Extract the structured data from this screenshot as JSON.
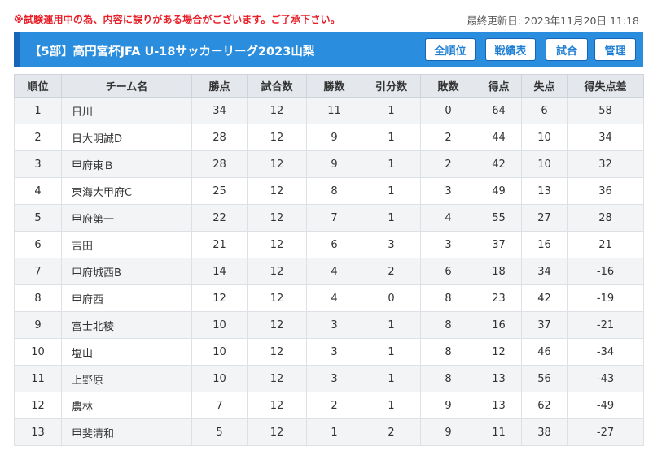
{
  "notice": "※試験運用中の為、内容に誤りがある場合がございます。ご了承下さい。",
  "last_updated": "最終更新日: 2023年11月20日 11:18",
  "header": {
    "title": "【5部】高円宮杯JFA U-18サッカーリーグ2023山梨",
    "buttons": {
      "standings": "全順位",
      "results": "戦績表",
      "matches": "試合",
      "admin": "管理"
    }
  },
  "colors": {
    "notice": "#e8202a",
    "header_bg": "#2a8dde",
    "header_accent": "#1565b8",
    "button_text": "#1f7fd4",
    "table_header_bg": "#e4e7ec",
    "row_stripe": "#f3f4f6"
  },
  "table": {
    "columns": [
      "順位",
      "チーム名",
      "勝点",
      "試合数",
      "勝数",
      "引分数",
      "敗数",
      "得点",
      "失点",
      "得失点差"
    ],
    "rows": [
      [
        "1",
        "日川",
        "34",
        "12",
        "11",
        "1",
        "0",
        "64",
        "6",
        "58"
      ],
      [
        "2",
        "日大明誠D",
        "28",
        "12",
        "9",
        "1",
        "2",
        "44",
        "10",
        "34"
      ],
      [
        "3",
        "甲府東Ｂ",
        "28",
        "12",
        "9",
        "1",
        "2",
        "42",
        "10",
        "32"
      ],
      [
        "4",
        "東海大甲府C",
        "25",
        "12",
        "8",
        "1",
        "3",
        "49",
        "13",
        "36"
      ],
      [
        "5",
        "甲府第一",
        "22",
        "12",
        "7",
        "1",
        "4",
        "55",
        "27",
        "28"
      ],
      [
        "6",
        "吉田",
        "21",
        "12",
        "6",
        "3",
        "3",
        "37",
        "16",
        "21"
      ],
      [
        "7",
        "甲府城西B",
        "14",
        "12",
        "4",
        "2",
        "6",
        "18",
        "34",
        "-16"
      ],
      [
        "8",
        "甲府西",
        "12",
        "12",
        "4",
        "0",
        "8",
        "23",
        "42",
        "-19"
      ],
      [
        "9",
        "富士北稜",
        "10",
        "12",
        "3",
        "1",
        "8",
        "16",
        "37",
        "-21"
      ],
      [
        "10",
        "塩山",
        "10",
        "12",
        "3",
        "1",
        "8",
        "12",
        "46",
        "-34"
      ],
      [
        "11",
        "上野原",
        "10",
        "12",
        "3",
        "1",
        "8",
        "13",
        "56",
        "-43"
      ],
      [
        "12",
        "農林",
        "7",
        "12",
        "2",
        "1",
        "9",
        "13",
        "62",
        "-49"
      ],
      [
        "13",
        "甲斐清和",
        "5",
        "12",
        "1",
        "2",
        "9",
        "11",
        "38",
        "-27"
      ]
    ]
  }
}
